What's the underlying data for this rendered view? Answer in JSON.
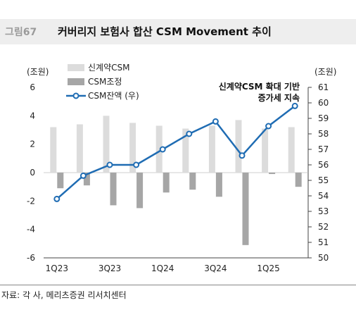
{
  "header": {
    "figure_label": "그림67",
    "title": "커버리지 보험사 합산 CSM Movement 추이"
  },
  "units": {
    "left": "(조원)",
    "right": "(조원)"
  },
  "legend": [
    {
      "label": "신계약CSM",
      "color": "#dcdcdc"
    },
    {
      "label": "CSM조정",
      "color": "#a6a6a6"
    },
    {
      "label": "CSM잔액 (우)",
      "color": "#1f6cb3"
    }
  ],
  "annotation": [
    "신계약CSM 확대 기반",
    "증가세 지속"
  ],
  "source": "자료: 각 사, 메리츠증권 리서치센터",
  "chart_data": {
    "type": "bar",
    "categories": [
      "1Q23",
      "2Q23",
      "3Q23",
      "4Q23",
      "1Q24",
      "2Q24",
      "3Q24",
      "4Q24",
      "1Q25",
      "2Q25"
    ],
    "x_tick_labels": [
      "1Q23",
      "",
      "3Q23",
      "",
      "1Q24",
      "",
      "3Q24",
      "",
      "1Q25",
      ""
    ],
    "series": [
      {
        "name": "신계약CSM",
        "type": "bar",
        "axis": "left",
        "color": "#dcdcdc",
        "values": [
          3.2,
          3.4,
          4.0,
          3.5,
          3.3,
          3.1,
          3.3,
          3.7,
          3.1,
          3.2
        ]
      },
      {
        "name": "CSM조정",
        "type": "bar",
        "axis": "left",
        "color": "#a6a6a6",
        "values": [
          -1.1,
          -0.9,
          -2.3,
          -2.5,
          -1.4,
          -1.2,
          -1.7,
          -5.1,
          -0.1,
          -1.0
        ]
      },
      {
        "name": "CSM잔액 (우)",
        "type": "line",
        "axis": "right",
        "color": "#1f6cb3",
        "values": [
          53.8,
          55.3,
          56.0,
          56.0,
          57.0,
          58.0,
          58.8,
          56.6,
          58.5,
          59.8
        ]
      }
    ],
    "y_left": {
      "min": -6,
      "max": 6,
      "ticks": [
        6,
        4,
        2,
        0,
        -2,
        -4,
        -6
      ]
    },
    "y_right": {
      "min": 50,
      "max": 61,
      "ticks": [
        61,
        60,
        59,
        58,
        57,
        56,
        55,
        54,
        53,
        52,
        51,
        50
      ]
    },
    "legend_position": "top-center",
    "grid": false
  }
}
